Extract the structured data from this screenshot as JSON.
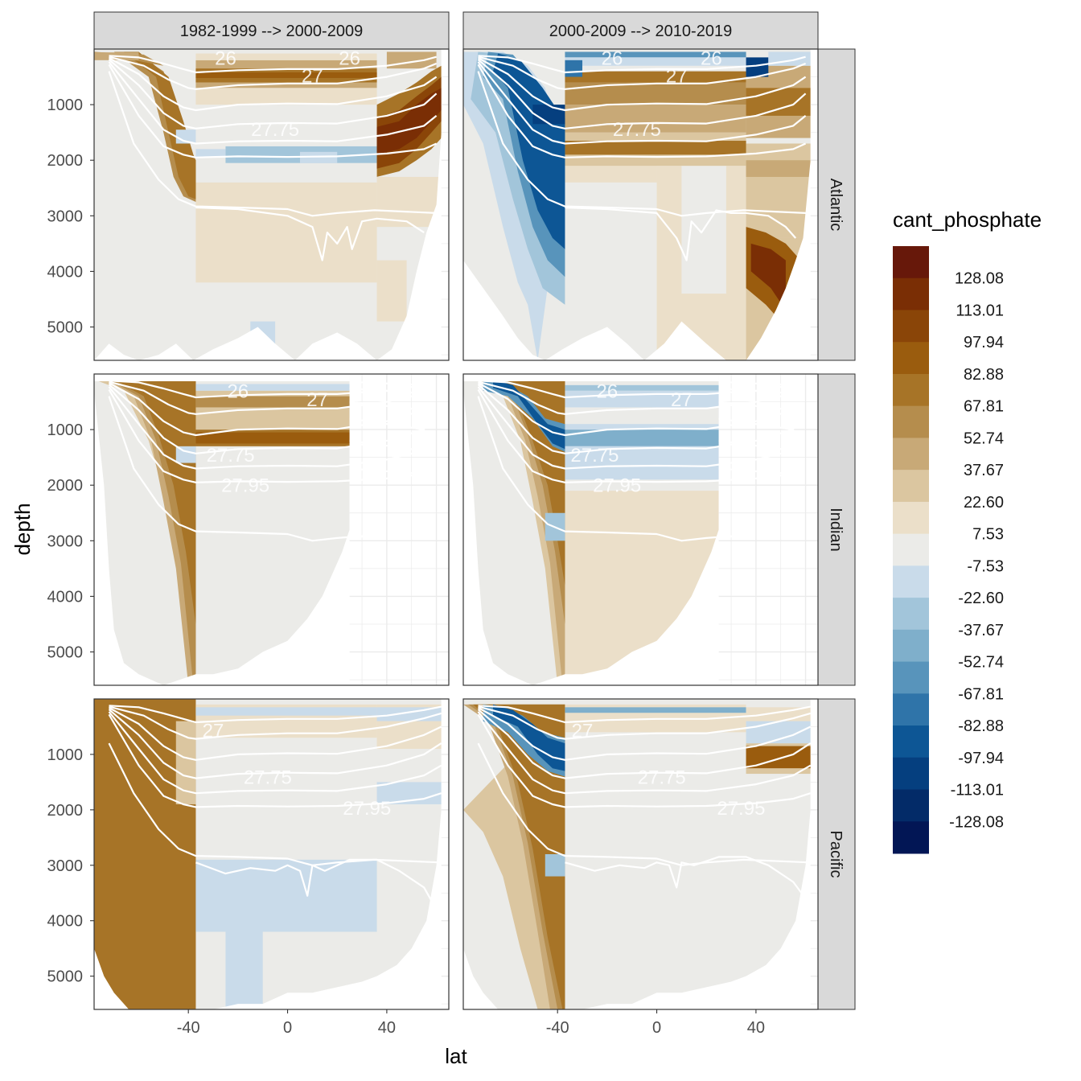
{
  "chart_data": {
    "type": "heatmap",
    "title": "",
    "xlabel": "lat",
    "ylabel": "depth",
    "xlim": [
      -78,
      65
    ],
    "ylim": [
      5600,
      0
    ],
    "x_ticks": [
      -40,
      0,
      40
    ],
    "x_tick_labels": [
      "-40",
      "0",
      "40"
    ],
    "y_ticks": [
      1000,
      2000,
      3000,
      4000,
      5000
    ],
    "y_tick_labels": [
      "1000",
      "2000",
      "3000",
      "4000",
      "5000"
    ],
    "column_strips": [
      "1982-1999 --> 2000-2009",
      "2000-2009 --> 2010-2019"
    ],
    "row_strips": [
      "Atlantic",
      "Indian",
      "Pacific"
    ],
    "legend": {
      "title": "cant_phosphate",
      "position": "right",
      "break_labels": [
        "128.08",
        "113.01",
        "97.94",
        "82.88",
        "67.81",
        "52.74",
        "37.67",
        "22.60",
        "7.53",
        "-7.53",
        "-22.60",
        "-37.67",
        "-52.74",
        "-67.81",
        "-82.88",
        "-97.94",
        "-113.01",
        "-128.08"
      ],
      "bin_colors": [
        "#67180a",
        "#7a2e05",
        "#8a4508",
        "#9a5c0e",
        "#a77427",
        "#b58d4d",
        "#c8a977",
        "#dbc6a0",
        "#ebdfc9",
        "#ebebe8",
        "#c9dbea",
        "#a2c5da",
        "#7fafcb",
        "#5894bb",
        "#2f74a9",
        "#0d5695",
        "#053f7f",
        "#032b68",
        "#021655"
      ]
    },
    "isopycnal_labels": [
      "26",
      "27",
      "27.75",
      "27.95"
    ],
    "panels": [
      {
        "row": "Atlantic",
        "column": "1982-1999 --> 2000-2009",
        "contour_labels": [
          {
            "text": "27.75",
            "lat": -5,
            "depth": 1430
          },
          {
            "text": "27",
            "lat": 10,
            "depth": 470
          },
          {
            "text": "26",
            "lat": -25,
            "depth": 150
          },
          {
            "text": "26",
            "lat": 25,
            "depth": 150
          }
        ]
      },
      {
        "row": "Atlantic",
        "column": "2000-2009 --> 2010-2019",
        "contour_labels": [
          {
            "text": "27.75",
            "lat": -8,
            "depth": 1430
          },
          {
            "text": "27",
            "lat": 8,
            "depth": 470
          },
          {
            "text": "26",
            "lat": -18,
            "depth": 150
          },
          {
            "text": "26",
            "lat": 22,
            "depth": 150
          }
        ]
      },
      {
        "row": "Indian",
        "column": "1982-1999 --> 2000-2009",
        "contour_labels": [
          {
            "text": "26",
            "lat": -20,
            "depth": 300
          },
          {
            "text": "27",
            "lat": 12,
            "depth": 450
          },
          {
            "text": "27.75",
            "lat": -23,
            "depth": 1450
          },
          {
            "text": "27.95",
            "lat": -17,
            "depth": 1990
          }
        ]
      },
      {
        "row": "Indian",
        "column": "2000-2009 --> 2010-2019",
        "contour_labels": [
          {
            "text": "26",
            "lat": -20,
            "depth": 300
          },
          {
            "text": "27",
            "lat": 10,
            "depth": 450
          },
          {
            "text": "27.75",
            "lat": -25,
            "depth": 1450
          },
          {
            "text": "27.95",
            "lat": -16,
            "depth": 1990
          }
        ]
      },
      {
        "row": "Pacific",
        "column": "1982-1999 --> 2000-2009",
        "contour_labels": [
          {
            "text": "27",
            "lat": -30,
            "depth": 560
          },
          {
            "text": "27.75",
            "lat": -8,
            "depth": 1400
          },
          {
            "text": "27.95",
            "lat": 32,
            "depth": 1960
          }
        ]
      },
      {
        "row": "Pacific",
        "column": "2000-2009 --> 2010-2019",
        "contour_labels": [
          {
            "text": "27",
            "lat": -30,
            "depth": 560
          },
          {
            "text": "27.75",
            "lat": 2,
            "depth": 1400
          },
          {
            "text": "27.95",
            "lat": 34,
            "depth": 1960
          }
        ]
      }
    ]
  }
}
